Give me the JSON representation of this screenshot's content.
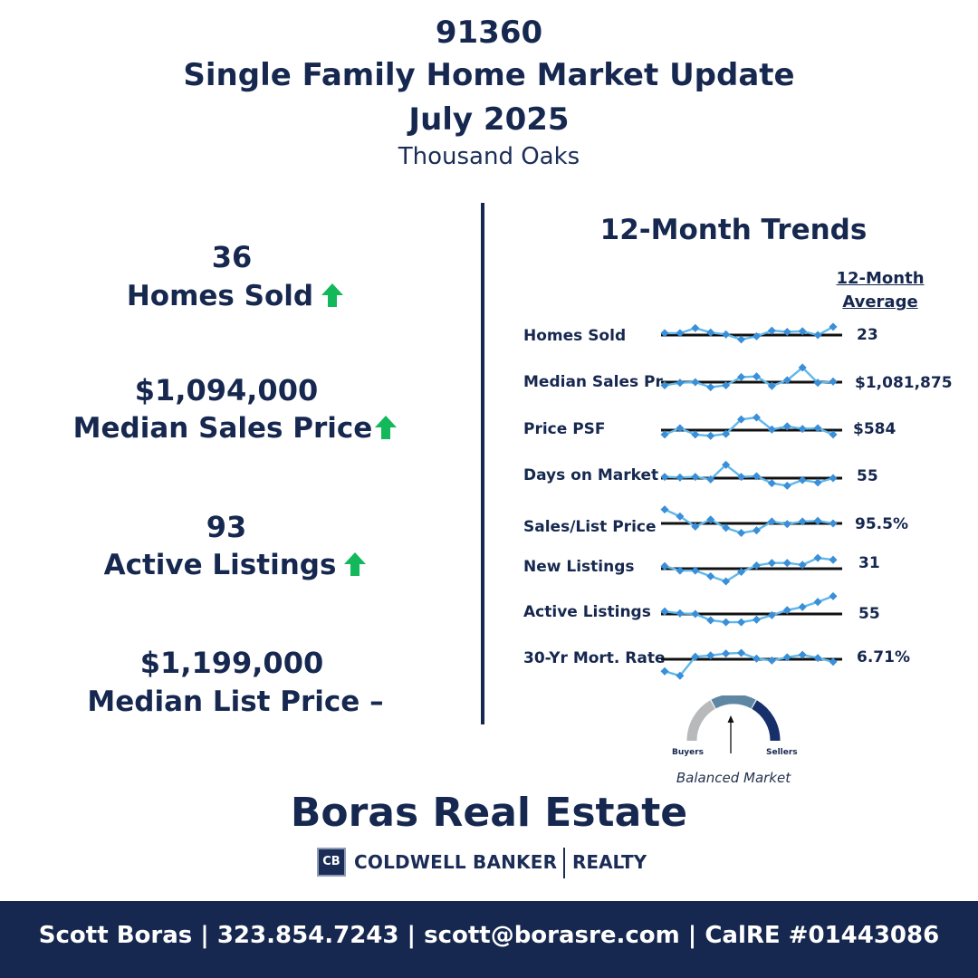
{
  "header": {
    "zip": "91360",
    "title": "Single Family Home Market Update",
    "month": "July 2025",
    "city": "Thousand Oaks"
  },
  "stats": [
    {
      "value": "36",
      "label": "Homes Sold",
      "trend": "up"
    },
    {
      "value": "$1,094,000",
      "label": "Median Sales Price",
      "trend": "up"
    },
    {
      "value": "93",
      "label": "Active Listings",
      "trend": "up"
    },
    {
      "value": "$1,199,000",
      "label": "Median List Price",
      "trend": "–"
    }
  ],
  "colors": {
    "navy": "#16284f",
    "green_arrow": "#12b85a",
    "spark_line": "#5fb8ec",
    "spark_point": "#3a8fd8"
  },
  "trends": {
    "title": "12-Month Trends",
    "avg_header_1": "12-Month",
    "avg_header_2": "Average",
    "rows": [
      {
        "label": "Homes Sold",
        "avg": "23",
        "series": [
          0.15,
          0.15,
          0.55,
          0.2,
          0.05,
          -0.35,
          -0.1,
          0.35,
          0.25,
          0.3,
          0.0,
          0.65
        ]
      },
      {
        "label": "Median Sales Pr",
        "avg": "$1,081,875",
        "series": [
          -0.25,
          -0.05,
          0.0,
          -0.4,
          -0.25,
          0.4,
          0.45,
          -0.3,
          0.15,
          1.15,
          -0.05,
          0.05
        ]
      },
      {
        "label": "Price PSF",
        "avg": "$584",
        "series": [
          -0.35,
          0.15,
          -0.35,
          -0.45,
          -0.3,
          0.85,
          1.0,
          0.05,
          0.3,
          0.1,
          0.15,
          -0.35
        ]
      },
      {
        "label": "Days on Market",
        "avg": "55",
        "series": [
          0.1,
          0.05,
          0.1,
          -0.1,
          1.05,
          0.1,
          0.15,
          -0.4,
          -0.6,
          -0.15,
          -0.35,
          0.0
        ]
      },
      {
        "label": "Sales/List Price",
        "avg": "95.5%",
        "series": [
          1.1,
          0.55,
          -0.25,
          0.3,
          -0.35,
          -0.75,
          -0.55,
          0.15,
          -0.05,
          0.15,
          0.2,
          0.0
        ]
      },
      {
        "label": "New Listings",
        "avg": "31",
        "series": [
          0.2,
          -0.15,
          -0.15,
          -0.6,
          -1.0,
          -0.25,
          0.25,
          0.45,
          0.45,
          0.3,
          0.85,
          0.7
        ]
      },
      {
        "label": "Active Listings",
        "avg": "55",
        "series": [
          0.2,
          0.05,
          0.0,
          -0.5,
          -0.65,
          -0.65,
          -0.45,
          -0.1,
          0.3,
          0.55,
          0.95,
          1.4
        ]
      },
      {
        "label": "30-Yr Mort. Rate",
        "avg": "6.71%",
        "series": [
          -0.95,
          -1.3,
          0.2,
          0.3,
          0.45,
          0.5,
          0.05,
          -0.1,
          0.15,
          0.35,
          0.1,
          -0.2
        ]
      }
    ]
  },
  "gauge": {
    "left_label": "Buyers",
    "right_label": "Sellers",
    "caption": "Balanced Market",
    "position": "balanced"
  },
  "brand": {
    "name": "Boras Real Estate",
    "cb_mark": "CB",
    "logo_name": "COLDWELL BANKER",
    "logo_suffix": "REALTY"
  },
  "footer": {
    "text": "Scott Boras | 323.854.7243 | scott@borasre.com | CalRE #01443086"
  }
}
